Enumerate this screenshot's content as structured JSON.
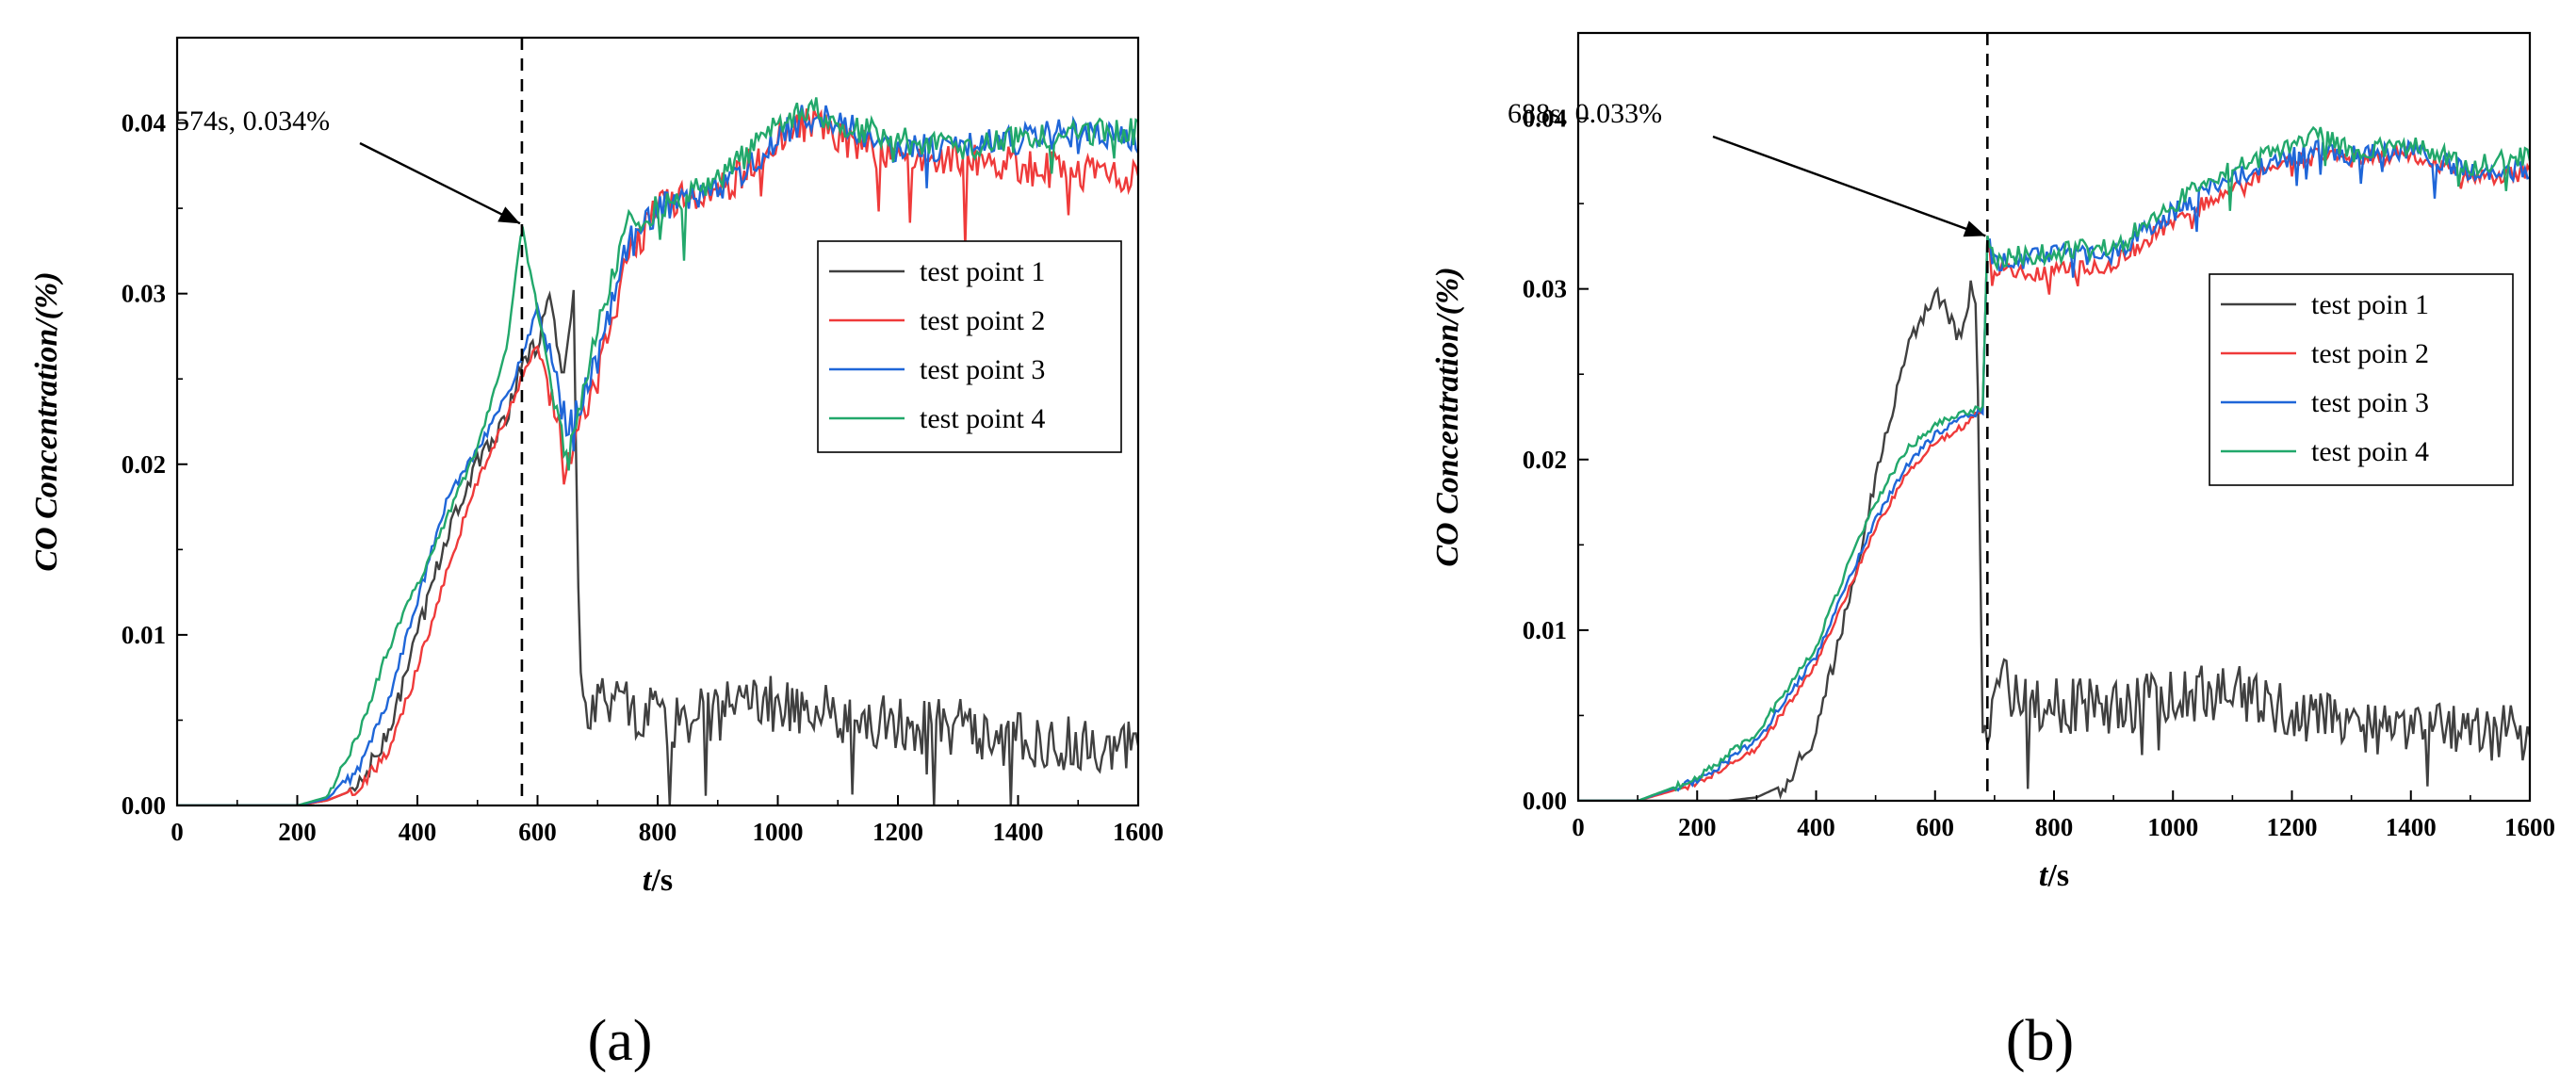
{
  "chart_data": [
    {
      "type": "line",
      "panel_label": "(a)",
      "xlabel_italic": "t",
      "xlabel_unit": "/s",
      "ylabel_italic": "CO Concentration",
      "ylabel_unit": "/(%)",
      "xlim": [
        0,
        1600
      ],
      "ylim": [
        0,
        0.045
      ],
      "xticks": [
        0,
        200,
        400,
        600,
        800,
        1000,
        1200,
        1400,
        1600
      ],
      "yticks": [
        0.0,
        0.01,
        0.02,
        0.03,
        0.04
      ],
      "ytick_labels": [
        "0.00",
        "0.01",
        "0.02",
        "0.03",
        "0.04"
      ],
      "legend_position": "right",
      "annotation": {
        "text": "574s, 0.034%",
        "x": 574,
        "y": 0.034
      },
      "vline_x": 574,
      "series": [
        {
          "name": "test point 1",
          "color": "#404040",
          "x": [
            0,
            200,
            250,
            300,
            350,
            400,
            450,
            500,
            550,
            574,
            600,
            620,
            640,
            660,
            670,
            680,
            700,
            750,
            800,
            900,
            1000,
            1100,
            1200,
            1300,
            1400,
            1500,
            1600
          ],
          "y": [
            0,
            0,
            0.0003,
            0.001,
            0.004,
            0.01,
            0.016,
            0.02,
            0.023,
            0.026,
            0.027,
            0.03,
            0.025,
            0.03,
            0.008,
            0.005,
            0.006,
            0.0055,
            0.005,
            0.0055,
            0.006,
            0.0055,
            0.005,
            0.0045,
            0.004,
            0.0035,
            0.004
          ],
          "noise": 0.0018,
          "noise_start": 680
        },
        {
          "name": "test point 2",
          "color": "#ef3a3a",
          "x": [
            0,
            200,
            250,
            300,
            350,
            400,
            450,
            500,
            550,
            600,
            650,
            700,
            750,
            800,
            900,
            1000,
            1050,
            1100,
            1200,
            1300,
            1400,
            1500,
            1600
          ],
          "y": [
            0,
            0,
            0.0003,
            0.001,
            0.003,
            0.008,
            0.014,
            0.019,
            0.023,
            0.027,
            0.02,
            0.025,
            0.032,
            0.035,
            0.036,
            0.039,
            0.04,
            0.039,
            0.038,
            0.038,
            0.0375,
            0.037,
            0.0368
          ],
          "noise": 0.0011,
          "noise_start": 620
        },
        {
          "name": "test point 3",
          "color": "#1f66d8",
          "x": [
            0,
            200,
            250,
            300,
            350,
            400,
            450,
            500,
            550,
            600,
            650,
            700,
            750,
            800,
            900,
            1000,
            1050,
            1100,
            1200,
            1300,
            1400,
            1500,
            1600
          ],
          "y": [
            0,
            0,
            0.0004,
            0.002,
            0.006,
            0.012,
            0.018,
            0.021,
            0.024,
            0.029,
            0.022,
            0.026,
            0.033,
            0.035,
            0.036,
            0.039,
            0.0405,
            0.04,
            0.0385,
            0.0385,
            0.039,
            0.0395,
            0.039
          ],
          "noise": 0.0009,
          "noise_start": 620
        },
        {
          "name": "test point 4",
          "color": "#22a86b",
          "x": [
            0,
            200,
            250,
            300,
            350,
            400,
            450,
            500,
            550,
            574,
            600,
            650,
            700,
            750,
            800,
            900,
            1000,
            1050,
            1100,
            1200,
            1300,
            1400,
            1500,
            1600
          ],
          "y": [
            0,
            0,
            0.0005,
            0.004,
            0.009,
            0.013,
            0.017,
            0.021,
            0.027,
            0.034,
            0.029,
            0.02,
            0.028,
            0.034,
            0.035,
            0.0365,
            0.04,
            0.041,
            0.04,
            0.039,
            0.0385,
            0.039,
            0.0395,
            0.0395
          ],
          "noise": 0.0008,
          "noise_start": 620
        }
      ]
    },
    {
      "type": "line",
      "panel_label": "(b)",
      "xlabel_italic": "t",
      "xlabel_unit": "/s",
      "ylabel_italic": "CO Concentration",
      "ylabel_unit": "/(%)",
      "xlim": [
        0,
        1600
      ],
      "ylim": [
        0,
        0.045
      ],
      "xticks": [
        0,
        200,
        400,
        600,
        800,
        1000,
        1200,
        1400,
        1600
      ],
      "yticks": [
        0.0,
        0.01,
        0.02,
        0.03,
        0.04
      ],
      "ytick_labels": [
        "0.00",
        "0.01",
        "0.02",
        "0.03",
        "0.04"
      ],
      "legend_position": "right",
      "annotation": {
        "text": "688s, 0.033%",
        "x": 688,
        "y": 0.033
      },
      "vline_x": 688,
      "series": [
        {
          "name": "test poin 1",
          "color": "#404040",
          "x": [
            0,
            250,
            300,
            350,
            400,
            450,
            500,
            550,
            600,
            640,
            660,
            670,
            680,
            690,
            700,
            750,
            800,
            900,
            1000,
            1100,
            1200,
            1300,
            1400,
            1500,
            1600
          ],
          "y": [
            0,
            0,
            0.0002,
            0.001,
            0.004,
            0.011,
            0.019,
            0.026,
            0.03,
            0.027,
            0.03,
            0.029,
            0.0045,
            0.003,
            0.007,
            0.006,
            0.0055,
            0.0055,
            0.006,
            0.0065,
            0.005,
            0.0045,
            0.004,
            0.004,
            0.004
          ],
          "noise": 0.0017,
          "noise_start": 690
        },
        {
          "name": "test poin 2",
          "color": "#ef3a3a",
          "x": [
            0,
            100,
            200,
            300,
            400,
            450,
            500,
            550,
            600,
            650,
            680,
            688,
            700,
            800,
            900,
            1000,
            1100,
            1200,
            1250,
            1300,
            1400,
            1500,
            1600
          ],
          "y": [
            0,
            0,
            0.001,
            0.003,
            0.008,
            0.012,
            0.016,
            0.019,
            0.021,
            0.022,
            0.023,
            0.033,
            0.031,
            0.031,
            0.0315,
            0.034,
            0.036,
            0.0375,
            0.0378,
            0.0375,
            0.038,
            0.0365,
            0.0368
          ],
          "noise": 0.0005,
          "noise_start": 690
        },
        {
          "name": "test poin 3",
          "color": "#1f66d8",
          "x": [
            0,
            100,
            200,
            300,
            400,
            450,
            500,
            550,
            600,
            650,
            680,
            688,
            700,
            800,
            900,
            1000,
            1100,
            1200,
            1250,
            1300,
            1400,
            1500,
            1600
          ],
          "y": [
            0,
            0,
            0.0012,
            0.0035,
            0.0085,
            0.0125,
            0.0165,
            0.0195,
            0.0215,
            0.0225,
            0.0228,
            0.033,
            0.0315,
            0.032,
            0.032,
            0.0345,
            0.0365,
            0.0378,
            0.0382,
            0.0378,
            0.0382,
            0.0368,
            0.037
          ],
          "noise": 0.0006,
          "noise_start": 690
        },
        {
          "name": "test poin 4",
          "color": "#22a86b",
          "x": [
            0,
            100,
            200,
            300,
            400,
            450,
            500,
            550,
            600,
            650,
            680,
            688,
            700,
            800,
            900,
            1000,
            1100,
            1200,
            1250,
            1300,
            1400,
            1500,
            1600
          ],
          "y": [
            0,
            0,
            0.0013,
            0.004,
            0.009,
            0.0135,
            0.0175,
            0.0205,
            0.022,
            0.0228,
            0.023,
            0.033,
            0.0318,
            0.0322,
            0.0325,
            0.035,
            0.037,
            0.0385,
            0.039,
            0.038,
            0.0385,
            0.0372,
            0.0378
          ],
          "noise": 0.0006,
          "noise_start": 690
        }
      ]
    }
  ]
}
